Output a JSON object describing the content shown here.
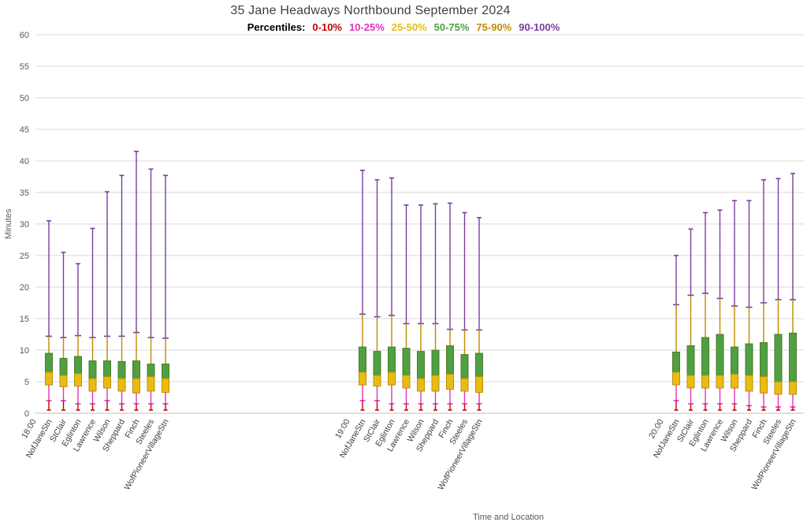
{
  "chart_data": {
    "type": "boxplot",
    "title": "35 Jane Headways Northbound September 2024",
    "legend_prefix": "Percentiles:",
    "legend": [
      {
        "label": "0-10%",
        "color": "#c00000"
      },
      {
        "label": "10-25%",
        "color": "#e433bb"
      },
      {
        "label": "25-50%",
        "color": "#e8bc14"
      },
      {
        "label": "50-75%",
        "color": "#4ea042"
      },
      {
        "label": "75-90%",
        "color": "#c08a00"
      },
      {
        "label": "90-100%",
        "color": "#7a3e9d"
      }
    ],
    "xlabel": "Time and Location",
    "ylabel": "Minutes",
    "ylim": [
      0,
      60
    ],
    "ytick_step": 5,
    "grid": true,
    "legend_note": "percentile order p0,p10,p25,p50,p75,p90,p100",
    "stations": [
      "NofJaneStn",
      "StClair",
      "Eglinton",
      "Lawrence",
      "Wilson",
      "Sheppard",
      "Finch",
      "Steeles",
      "WofPioneerVillageStn"
    ],
    "groups": [
      {
        "time": "18:00",
        "boxes": [
          [
            0.5,
            2.0,
            4.5,
            6.5,
            9.5,
            12.2,
            30.5
          ],
          [
            0.5,
            2.0,
            4.2,
            6.0,
            8.7,
            12.0,
            25.5
          ],
          [
            0.5,
            1.5,
            4.3,
            6.3,
            9.0,
            12.3,
            23.7
          ],
          [
            0.5,
            1.5,
            3.5,
            5.5,
            8.3,
            12.0,
            29.3
          ],
          [
            0.5,
            2.0,
            4.0,
            5.8,
            8.3,
            12.2,
            35.1
          ],
          [
            0.5,
            1.5,
            3.5,
            5.5,
            8.2,
            12.2,
            37.7
          ],
          [
            0.5,
            1.5,
            3.2,
            5.5,
            8.3,
            12.8,
            41.5
          ],
          [
            0.5,
            1.5,
            3.5,
            5.8,
            7.8,
            12.0,
            38.7
          ],
          [
            0.5,
            1.5,
            3.3,
            5.5,
            7.8,
            11.9,
            37.7
          ]
        ]
      },
      {
        "time": "19:00",
        "boxes": [
          [
            0.5,
            2.0,
            4.5,
            6.5,
            10.5,
            15.7,
            38.5
          ],
          [
            0.5,
            2.0,
            4.3,
            6.0,
            9.8,
            15.3,
            37.0
          ],
          [
            0.5,
            1.5,
            4.5,
            6.5,
            10.5,
            15.5,
            37.3
          ],
          [
            0.5,
            1.5,
            4.0,
            6.0,
            10.3,
            14.2,
            33.0
          ],
          [
            0.5,
            1.5,
            3.5,
            5.5,
            9.8,
            14.2,
            33.0
          ],
          [
            0.5,
            1.5,
            3.5,
            6.0,
            10.0,
            14.2,
            33.2
          ],
          [
            0.5,
            1.5,
            3.8,
            6.2,
            10.7,
            13.3,
            33.3
          ],
          [
            0.5,
            1.5,
            3.5,
            5.5,
            9.3,
            13.2,
            31.8
          ],
          [
            0.5,
            1.5,
            3.3,
            5.8,
            9.5,
            13.2,
            31.0
          ]
        ]
      },
      {
        "time": "20:00",
        "boxes": [
          [
            0.5,
            2.0,
            4.5,
            6.5,
            9.7,
            17.2,
            25.0
          ],
          [
            0.5,
            1.5,
            4.0,
            6.0,
            10.7,
            18.7,
            29.2
          ],
          [
            0.5,
            1.5,
            4.0,
            6.0,
            12.0,
            19.0,
            31.8
          ],
          [
            0.5,
            1.5,
            4.0,
            6.0,
            12.5,
            18.2,
            32.2
          ],
          [
            0.5,
            1.5,
            4.0,
            6.2,
            10.5,
            17.0,
            33.7
          ],
          [
            0.5,
            1.2,
            3.5,
            6.0,
            11.0,
            16.8,
            33.7
          ],
          [
            0.5,
            1.0,
            3.2,
            5.8,
            11.2,
            17.5,
            37.0
          ],
          [
            0.5,
            1.0,
            3.0,
            5.0,
            12.5,
            18.0,
            37.2
          ],
          [
            0.5,
            1.0,
            3.0,
            5.0,
            12.7,
            18.0,
            38.0
          ]
        ]
      }
    ],
    "colors": {
      "grid": "#dadada",
      "axis_line": "#bfbfbf",
      "axis_text": "#595959",
      "tick_label": "#404040",
      "green_stroke": "#4e7a2b",
      "yellow_stroke": "#c09000"
    }
  }
}
